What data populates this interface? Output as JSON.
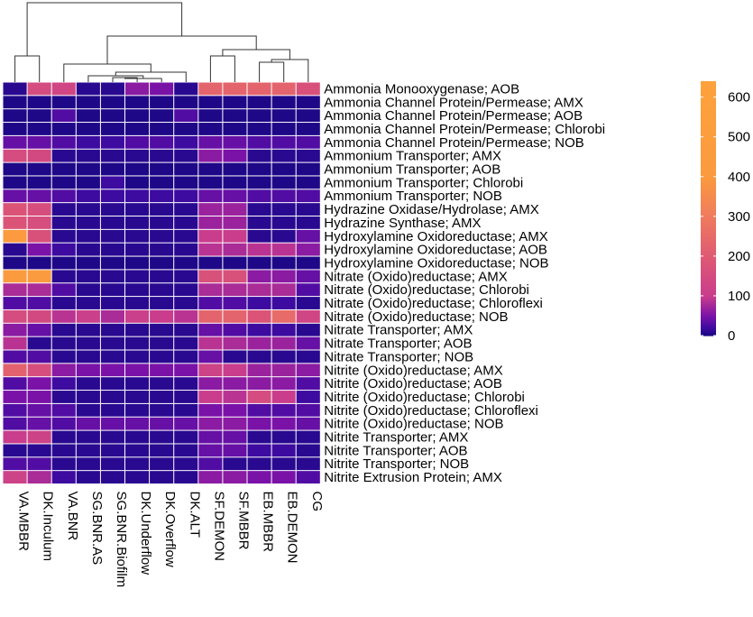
{
  "chart_data": {
    "type": "heatmap",
    "title": "",
    "rows": [
      "Ammonia Monooxygenase; AOB",
      "Ammonia Channel Protein/Permease; AMX",
      "Ammonia Channel Protein/Permease; AOB",
      "Ammonia Channel Protein/Permease; Chlorobi",
      "Ammonia Channel Protein/Permease; NOB",
      "Ammonium Transporter; AMX",
      "Ammonium Transporter; AOB",
      "Ammonium Transporter; Chlorobi",
      "Ammonium Transporter; NOB",
      "Hydrazine Oxidase/Hydrolase; AMX",
      "Hydrazine Synthase; AMX",
      "Hydroxylamine Oxidoreductase; AMX",
      "Hydroxylamine Oxidoreductase; AOB",
      "Hydroxylamine Oxidoreductase; NOB",
      "Nitrate (Oxido)reductase; AMX",
      "Nitrate (Oxido)reductase; Chlorobi",
      "Nitrate (Oxido)reductase; Chloroflexi",
      "Nitrate (Oxido)reductase; NOB",
      "Nitrate Transporter; AMX",
      "Nitrate Transporter; AOB",
      "Nitrate Transporter; NOB",
      "Nitrite (Oxido)reductase; AMX",
      "Nitrite (Oxido)reductase; AOB",
      "Nitrite (Oxido)reductase; Chlorobi",
      "Nitrite (Oxido)reductase; Chloroflexi",
      "Nitrite (Oxido)reductase; NOB",
      "Nitrite Transporter; AMX",
      "Nitrite Transporter; AOB",
      "Nitrite Transporter; NOB",
      "Nitrite Extrusion Protein; AMX"
    ],
    "columns": [
      "VA.MBBR",
      "DK.Inculum",
      "VA.BNR",
      "SG.BNR.AS",
      "SG.BNR.Biofilm",
      "DK.Underflow",
      "DK.Overflow",
      "DK.ALT",
      "SF.DEMON",
      "SF.MBBR",
      "EB.MBBR",
      "EB.DEMON",
      "CG"
    ],
    "values": [
      [
        10,
        150,
        130,
        10,
        10,
        60,
        50,
        10,
        230,
        230,
        230,
        230,
        170
      ],
      [
        5,
        5,
        5,
        5,
        5,
        5,
        5,
        5,
        5,
        5,
        5,
        5,
        5
      ],
      [
        5,
        5,
        30,
        5,
        5,
        5,
        5,
        30,
        5,
        5,
        5,
        5,
        5
      ],
      [
        5,
        5,
        5,
        5,
        5,
        5,
        5,
        5,
        5,
        5,
        5,
        5,
        5
      ],
      [
        40,
        40,
        30,
        20,
        20,
        30,
        30,
        20,
        40,
        40,
        30,
        30,
        30
      ],
      [
        150,
        140,
        10,
        10,
        10,
        10,
        10,
        10,
        60,
        50,
        10,
        10,
        10
      ],
      [
        5,
        5,
        5,
        5,
        5,
        5,
        5,
        5,
        5,
        5,
        5,
        5,
        5
      ],
      [
        5,
        5,
        5,
        5,
        20,
        5,
        5,
        5,
        5,
        5,
        5,
        5,
        5
      ],
      [
        40,
        40,
        30,
        20,
        20,
        20,
        20,
        20,
        40,
        40,
        30,
        30,
        30
      ],
      [
        180,
        160,
        10,
        10,
        10,
        10,
        10,
        10,
        70,
        70,
        10,
        10,
        10
      ],
      [
        180,
        160,
        10,
        10,
        10,
        10,
        10,
        10,
        70,
        70,
        10,
        10,
        10
      ],
      [
        400,
        170,
        10,
        10,
        10,
        10,
        10,
        10,
        100,
        100,
        10,
        10,
        40
      ],
      [
        10,
        50,
        20,
        10,
        10,
        10,
        10,
        10,
        90,
        80,
        90,
        90,
        60
      ],
      [
        5,
        5,
        5,
        5,
        5,
        5,
        5,
        5,
        5,
        5,
        5,
        5,
        5
      ],
      [
        420,
        420,
        10,
        10,
        10,
        10,
        10,
        10,
        170,
        170,
        60,
        60,
        40
      ],
      [
        80,
        80,
        30,
        10,
        10,
        10,
        10,
        10,
        80,
        80,
        80,
        80,
        30
      ],
      [
        30,
        30,
        10,
        10,
        10,
        10,
        10,
        10,
        30,
        30,
        20,
        20,
        10
      ],
      [
        150,
        140,
        90,
        110,
        80,
        110,
        100,
        90,
        230,
        230,
        180,
        250,
        130
      ],
      [
        60,
        40,
        10,
        10,
        10,
        10,
        10,
        10,
        40,
        30,
        20,
        20,
        10
      ],
      [
        90,
        10,
        10,
        10,
        10,
        10,
        10,
        10,
        90,
        80,
        70,
        70,
        40
      ],
      [
        30,
        30,
        10,
        10,
        10,
        10,
        10,
        10,
        40,
        10,
        10,
        10,
        10
      ],
      [
        220,
        160,
        60,
        50,
        50,
        50,
        50,
        50,
        120,
        100,
        70,
        70,
        60
      ],
      [
        30,
        50,
        20,
        10,
        10,
        10,
        10,
        10,
        60,
        60,
        60,
        60,
        30
      ],
      [
        50,
        50,
        10,
        10,
        10,
        10,
        10,
        10,
        100,
        90,
        150,
        100,
        20
      ],
      [
        30,
        40,
        30,
        10,
        10,
        10,
        10,
        10,
        50,
        50,
        30,
        30,
        30
      ],
      [
        30,
        40,
        30,
        40,
        40,
        40,
        40,
        40,
        60,
        60,
        50,
        50,
        40
      ],
      [
        100,
        120,
        10,
        10,
        10,
        10,
        10,
        10,
        40,
        40,
        10,
        10,
        10
      ],
      [
        10,
        10,
        10,
        10,
        10,
        10,
        10,
        10,
        40,
        40,
        20,
        20,
        10
      ],
      [
        30,
        30,
        10,
        10,
        10,
        10,
        10,
        10,
        30,
        10,
        10,
        10,
        10
      ],
      [
        120,
        80,
        20,
        10,
        10,
        10,
        10,
        10,
        60,
        60,
        50,
        50,
        30
      ]
    ],
    "colorbar": {
      "ticks": [
        0,
        100,
        200,
        300,
        400,
        500,
        600
      ],
      "range": [
        0,
        640
      ],
      "stops": [
        {
          "value": 0,
          "color": "#15077f"
        },
        {
          "value": 20,
          "color": "#3d0ba0"
        },
        {
          "value": 50,
          "color": "#7a12a8"
        },
        {
          "value": 100,
          "color": "#c93d8c"
        },
        {
          "value": 200,
          "color": "#df5a73"
        },
        {
          "value": 300,
          "color": "#ef7b5e"
        },
        {
          "value": 400,
          "color": "#fb9a3f"
        },
        {
          "value": 640,
          "color": "#fda23c"
        }
      ]
    },
    "legend": "right"
  }
}
